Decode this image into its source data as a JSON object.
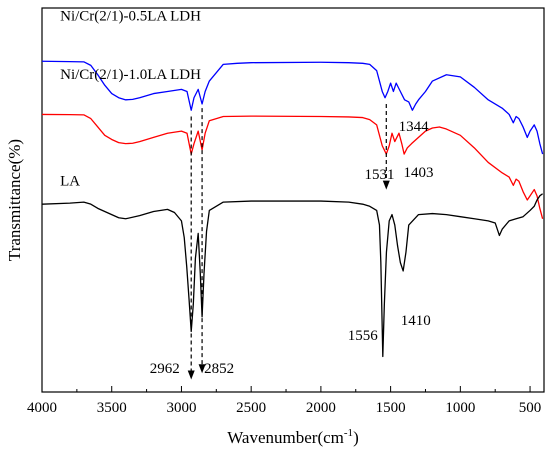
{
  "chart_data": {
    "type": "line",
    "xlabel": "Wavenumber(cm",
    "xlabel_sup": "-1",
    "xlabel_close": ")",
    "ylabel": "Transmittance(%)",
    "xlim": [
      4000,
      400
    ],
    "x_reversed": true,
    "x_ticks": [
      4000,
      3500,
      3000,
      2500,
      2000,
      1500,
      1000,
      500
    ],
    "y_ticks_shown": false,
    "grid": false,
    "series": [
      {
        "name": "Ni/Cr(2/1)-0.5LA LDH",
        "color": "#0000ff",
        "points": [
          [
            4000,
            0.865
          ],
          [
            3800,
            0.863
          ],
          [
            3700,
            0.862
          ],
          [
            3650,
            0.845
          ],
          [
            3600,
            0.8
          ],
          [
            3550,
            0.75
          ],
          [
            3500,
            0.71
          ],
          [
            3450,
            0.69
          ],
          [
            3400,
            0.68
          ],
          [
            3350,
            0.682
          ],
          [
            3300,
            0.69
          ],
          [
            3200,
            0.71
          ],
          [
            3100,
            0.72
          ],
          [
            3000,
            0.73
          ],
          [
            2960,
            0.72
          ],
          [
            2930,
            0.63
          ],
          [
            2910,
            0.69
          ],
          [
            2880,
            0.73
          ],
          [
            2852,
            0.66
          ],
          [
            2830,
            0.72
          ],
          [
            2800,
            0.77
          ],
          [
            2700,
            0.85
          ],
          [
            2600,
            0.855
          ],
          [
            2500,
            0.858
          ],
          [
            2000,
            0.86
          ],
          [
            1800,
            0.858
          ],
          [
            1700,
            0.855
          ],
          [
            1650,
            0.85
          ],
          [
            1600,
            0.82
          ],
          [
            1560,
            0.72
          ],
          [
            1540,
            0.69
          ],
          [
            1520,
            0.72
          ],
          [
            1500,
            0.76
          ],
          [
            1480,
            0.72
          ],
          [
            1460,
            0.76
          ],
          [
            1430,
            0.72
          ],
          [
            1400,
            0.68
          ],
          [
            1370,
            0.67
          ],
          [
            1344,
            0.63
          ],
          [
            1320,
            0.66
          ],
          [
            1300,
            0.68
          ],
          [
            1250,
            0.72
          ],
          [
            1200,
            0.77
          ],
          [
            1100,
            0.8
          ],
          [
            1000,
            0.79
          ],
          [
            900,
            0.74
          ],
          [
            800,
            0.68
          ],
          [
            700,
            0.64
          ],
          [
            650,
            0.61
          ],
          [
            620,
            0.57
          ],
          [
            600,
            0.6
          ],
          [
            580,
            0.59
          ],
          [
            550,
            0.55
          ],
          [
            520,
            0.5
          ],
          [
            500,
            0.53
          ],
          [
            470,
            0.56
          ],
          [
            450,
            0.53
          ],
          [
            430,
            0.47
          ],
          [
            410,
            0.42
          ]
        ]
      },
      {
        "name": "Ni/Cr(2/1)-1.0LA LDH",
        "color": "#ff0000",
        "points": [
          [
            4000,
            0.61
          ],
          [
            3800,
            0.609
          ],
          [
            3700,
            0.608
          ],
          [
            3650,
            0.59
          ],
          [
            3600,
            0.55
          ],
          [
            3550,
            0.51
          ],
          [
            3500,
            0.49
          ],
          [
            3450,
            0.475
          ],
          [
            3400,
            0.47
          ],
          [
            3350,
            0.472
          ],
          [
            3300,
            0.48
          ],
          [
            3200,
            0.5
          ],
          [
            3100,
            0.52
          ],
          [
            3000,
            0.53
          ],
          [
            2960,
            0.52
          ],
          [
            2930,
            0.42
          ],
          [
            2910,
            0.47
          ],
          [
            2880,
            0.53
          ],
          [
            2852,
            0.44
          ],
          [
            2830,
            0.52
          ],
          [
            2800,
            0.58
          ],
          [
            2700,
            0.6
          ],
          [
            2500,
            0.602
          ],
          [
            2000,
            0.6
          ],
          [
            1800,
            0.598
          ],
          [
            1700,
            0.595
          ],
          [
            1650,
            0.585
          ],
          [
            1600,
            0.56
          ],
          [
            1560,
            0.46
          ],
          [
            1531,
            0.42
          ],
          [
            1510,
            0.46
          ],
          [
            1490,
            0.52
          ],
          [
            1470,
            0.48
          ],
          [
            1440,
            0.52
          ],
          [
            1420,
            0.47
          ],
          [
            1403,
            0.42
          ],
          [
            1380,
            0.45
          ],
          [
            1350,
            0.47
          ],
          [
            1300,
            0.5
          ],
          [
            1250,
            0.53
          ],
          [
            1200,
            0.545
          ],
          [
            1150,
            0.55
          ],
          [
            1100,
            0.54
          ],
          [
            1000,
            0.51
          ],
          [
            900,
            0.45
          ],
          [
            800,
            0.38
          ],
          [
            700,
            0.33
          ],
          [
            650,
            0.31
          ],
          [
            620,
            0.27
          ],
          [
            600,
            0.3
          ],
          [
            580,
            0.29
          ],
          [
            550,
            0.24
          ],
          [
            520,
            0.2
          ],
          [
            500,
            0.22
          ],
          [
            470,
            0.25
          ],
          [
            450,
            0.22
          ],
          [
            430,
            0.16
          ],
          [
            410,
            0.11
          ]
        ]
      },
      {
        "name": "LA",
        "color": "#000000",
        "points": [
          [
            4000,
            0.18
          ],
          [
            3800,
            0.185
          ],
          [
            3700,
            0.19
          ],
          [
            3650,
            0.18
          ],
          [
            3600,
            0.16
          ],
          [
            3500,
            0.13
          ],
          [
            3450,
            0.115
          ],
          [
            3400,
            0.11
          ],
          [
            3300,
            0.125
          ],
          [
            3200,
            0.145
          ],
          [
            3100,
            0.155
          ],
          [
            3050,
            0.14
          ],
          [
            3000,
            0.1
          ],
          [
            2980,
            0.02
          ],
          [
            2962,
            -0.12
          ],
          [
            2945,
            -0.28
          ],
          [
            2930,
            -0.43
          ],
          [
            2915,
            -0.3
          ],
          [
            2900,
            -0.08
          ],
          [
            2880,
            0.04
          ],
          [
            2865,
            -0.15
          ],
          [
            2852,
            -0.36
          ],
          [
            2838,
            -0.15
          ],
          [
            2820,
            0.05
          ],
          [
            2800,
            0.15
          ],
          [
            2700,
            0.19
          ],
          [
            2500,
            0.195
          ],
          [
            2000,
            0.195
          ],
          [
            1800,
            0.19
          ],
          [
            1700,
            0.18
          ],
          [
            1650,
            0.17
          ],
          [
            1600,
            0.15
          ],
          [
            1580,
            0.08
          ],
          [
            1570,
            -0.1
          ],
          [
            1556,
            -0.55
          ],
          [
            1545,
            -0.3
          ],
          [
            1530,
            -0.05
          ],
          [
            1510,
            0.1
          ],
          [
            1490,
            0.13
          ],
          [
            1470,
            0.08
          ],
          [
            1450,
            -0.02
          ],
          [
            1430,
            -0.1
          ],
          [
            1410,
            -0.14
          ],
          [
            1390,
            -0.05
          ],
          [
            1370,
            0.08
          ],
          [
            1300,
            0.13
          ],
          [
            1200,
            0.135
          ],
          [
            1100,
            0.13
          ],
          [
            1000,
            0.12
          ],
          [
            900,
            0.11
          ],
          [
            800,
            0.1
          ],
          [
            750,
            0.09
          ],
          [
            720,
            0.03
          ],
          [
            700,
            0.06
          ],
          [
            650,
            0.1
          ],
          [
            600,
            0.11
          ],
          [
            550,
            0.12
          ],
          [
            500,
            0.15
          ],
          [
            470,
            0.17
          ],
          [
            450,
            0.2
          ],
          [
            430,
            0.22
          ],
          [
            410,
            0.23
          ]
        ]
      }
    ],
    "annotations": [
      {
        "text": "1344",
        "x": 1335,
        "y": 0.53
      },
      {
        "text": "1531",
        "x": 1580,
        "y": 0.3
      },
      {
        "text": "1403",
        "x": 1300,
        "y": 0.31
      },
      {
        "text": "1556",
        "x": 1700,
        "y": -0.47
      },
      {
        "text": "1410",
        "x": 1320,
        "y": -0.4
      },
      {
        "text": "2962",
        "x": 3120,
        "y": -0.63
      },
      {
        "text": "2852",
        "x": 2730,
        "y": -0.63
      }
    ],
    "dashed_arrows": [
      {
        "x": 2930,
        "y_top": 0.6,
        "y_bottom": -0.66
      },
      {
        "x": 2852,
        "y_top": 0.64,
        "y_bottom": -0.63
      },
      {
        "x": 1531,
        "y_top": 0.66,
        "y_bottom": 0.25
      }
    ],
    "ylim": [
      -0.72,
      1.12
    ]
  }
}
